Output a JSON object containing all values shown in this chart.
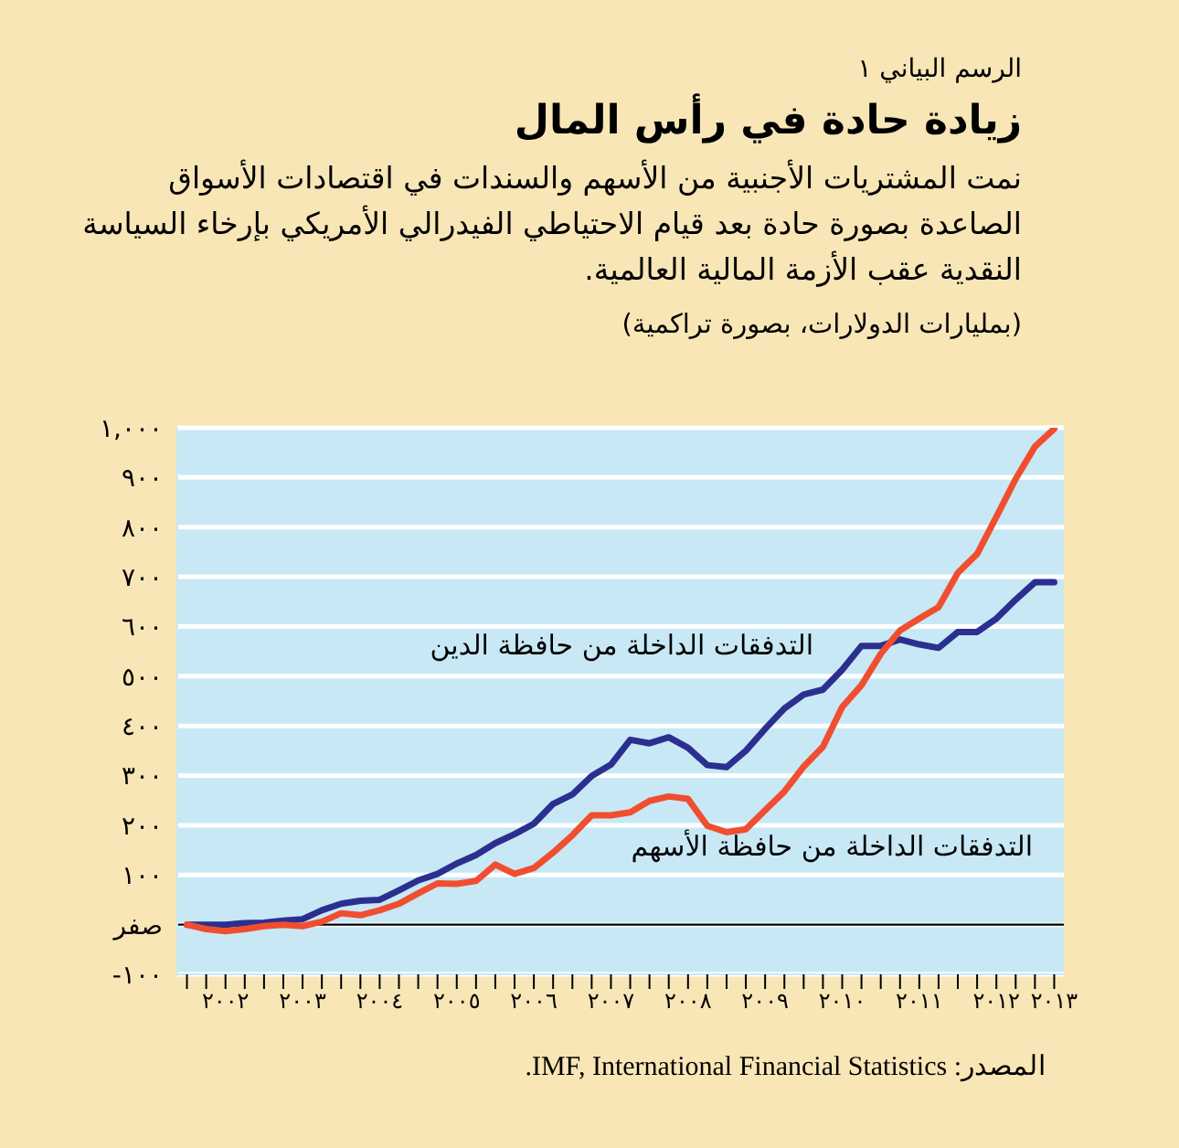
{
  "chart_data": {
    "type": "line",
    "title": "زيادة حادة في رأس المال",
    "subtitle": "نمت المشتريات الأجنبية من الأسهم والسندات في اقتصادات الأسواق الصاعدة بصورة حادة بعد قيام الاحتياطي الفيدرالي الأمريكي بإرخاء السياسة النقدية عقب الأزمة المالية العالمية.",
    "ylabel": "(بمليارات الدولارات، بصورة تراكمية)",
    "annotations": [
      "الرسم البياني ١",
      "المصدر: IMF, International Financial Statistics."
    ],
    "x": [
      2002,
      2002.25,
      2002.5,
      2002.75,
      2003,
      2003.25,
      2003.5,
      2003.75,
      2004,
      2004.25,
      2004.5,
      2004.75,
      2005,
      2005.25,
      2005.5,
      2005.75,
      2006,
      2006.25,
      2006.5,
      2006.75,
      2007,
      2007.25,
      2007.5,
      2007.75,
      2008,
      2008.25,
      2008.5,
      2008.75,
      2009,
      2009.25,
      2009.5,
      2009.75,
      2010,
      2010.25,
      2010.5,
      2010.75,
      2011,
      2011.25,
      2011.5,
      2011.75,
      2012,
      2012.25,
      2012.5,
      2012.75,
      2013,
      2013.25
    ],
    "series": [
      {
        "name": "التدفقات الداخلة من حافظة الدين",
        "color": "#2b2f8f",
        "values": [
          0,
          0,
          0,
          3,
          4,
          8,
          11,
          29,
          42,
          48,
          50,
          69,
          89,
          102,
          123,
          140,
          164,
          182,
          203,
          243,
          262,
          299,
          322,
          372,
          365,
          377,
          356,
          321,
          317,
          350,
          394,
          435,
          463,
          473,
          513,
          561,
          561,
          574,
          564,
          557,
          589,
          589,
          616,
          654,
          689,
          689
        ]
      },
      {
        "name": "التدفقات الداخلة من حافظة الأسهم",
        "color": "#f04e2f",
        "values": [
          0,
          -9,
          -13,
          -9,
          -3,
          0,
          -3,
          6,
          23,
          19,
          29,
          42,
          63,
          83,
          82,
          88,
          121,
          102,
          114,
          145,
          180,
          220,
          220,
          226,
          249,
          258,
          253,
          199,
          186,
          192,
          230,
          268,
          318,
          358,
          438,
          482,
          545,
          592,
          616,
          639,
          708,
          746,
          821,
          897,
          962,
          998
        ]
      }
    ],
    "xlim": [
      2001.875,
      2013.375
    ],
    "xticks": [
      {
        "value": 2002,
        "label": null
      },
      {
        "value": 2002.25,
        "label": null
      },
      {
        "value": 2002.5,
        "label": "٢٠٠٢"
      },
      {
        "value": 2002.75,
        "label": null
      },
      {
        "value": 2003,
        "label": null
      },
      {
        "value": 2003.25,
        "label": null
      },
      {
        "value": 2003.5,
        "label": "٢٠٠٣"
      },
      {
        "value": 2003.75,
        "label": null
      },
      {
        "value": 2004,
        "label": null
      },
      {
        "value": 2004.25,
        "label": null
      },
      {
        "value": 2004.5,
        "label": "٢٠٠٤"
      },
      {
        "value": 2004.75,
        "label": null
      },
      {
        "value": 2005,
        "label": null
      },
      {
        "value": 2005.25,
        "label": null
      },
      {
        "value": 2005.5,
        "label": "٢٠٠٥"
      },
      {
        "value": 2005.75,
        "label": null
      },
      {
        "value": 2006,
        "label": null
      },
      {
        "value": 2006.25,
        "label": null
      },
      {
        "value": 2006.5,
        "label": "٢٠٠٦"
      },
      {
        "value": 2006.75,
        "label": null
      },
      {
        "value": 2007,
        "label": null
      },
      {
        "value": 2007.25,
        "label": null
      },
      {
        "value": 2007.5,
        "label": "٢٠٠٧"
      },
      {
        "value": 2007.75,
        "label": null
      },
      {
        "value": 2008,
        "label": null
      },
      {
        "value": 2008.25,
        "label": null
      },
      {
        "value": 2008.5,
        "label": "٢٠٠٨"
      },
      {
        "value": 2008.75,
        "label": null
      },
      {
        "value": 2009,
        "label": null
      },
      {
        "value": 2009.25,
        "label": null
      },
      {
        "value": 2009.5,
        "label": "٢٠٠٩"
      },
      {
        "value": 2009.75,
        "label": null
      },
      {
        "value": 2010,
        "label": null
      },
      {
        "value": 2010.25,
        "label": null
      },
      {
        "value": 2010.5,
        "label": "٢٠١٠"
      },
      {
        "value": 2010.75,
        "label": null
      },
      {
        "value": 2011,
        "label": null
      },
      {
        "value": 2011.25,
        "label": null
      },
      {
        "value": 2011.5,
        "label": "٢٠١١"
      },
      {
        "value": 2011.75,
        "label": null
      },
      {
        "value": 2012,
        "label": null
      },
      {
        "value": 2012.25,
        "label": null
      },
      {
        "value": 2012.5,
        "label": "٢٠١٢"
      },
      {
        "value": 2012.75,
        "label": null
      },
      {
        "value": 2013,
        "label": null
      },
      {
        "value": 2013.25,
        "label": "٢٠١٣"
      }
    ],
    "ylim": [
      -100,
      1000
    ],
    "yticks": [
      {
        "value": -100,
        "label": "-١٠٠"
      },
      {
        "value": 0,
        "label": "صفر"
      },
      {
        "value": 100,
        "label": "١٠٠"
      },
      {
        "value": 200,
        "label": "٢٠٠"
      },
      {
        "value": 300,
        "label": "٣٠٠"
      },
      {
        "value": 400,
        "label": "٤٠٠"
      },
      {
        "value": 500,
        "label": "٥٠٠"
      },
      {
        "value": 600,
        "label": "٦٠٠"
      },
      {
        "value": 700,
        "label": "٧٠٠"
      },
      {
        "value": 800,
        "label": "٨٠٠"
      },
      {
        "value": 900,
        "label": "٩٠٠"
      },
      {
        "value": 1000,
        "label": "١,٠٠٠"
      }
    ],
    "grid": "y",
    "legend": false,
    "ref_lines": [
      {
        "axis": "y",
        "value": 0,
        "color": "#000000"
      }
    ]
  }
}
